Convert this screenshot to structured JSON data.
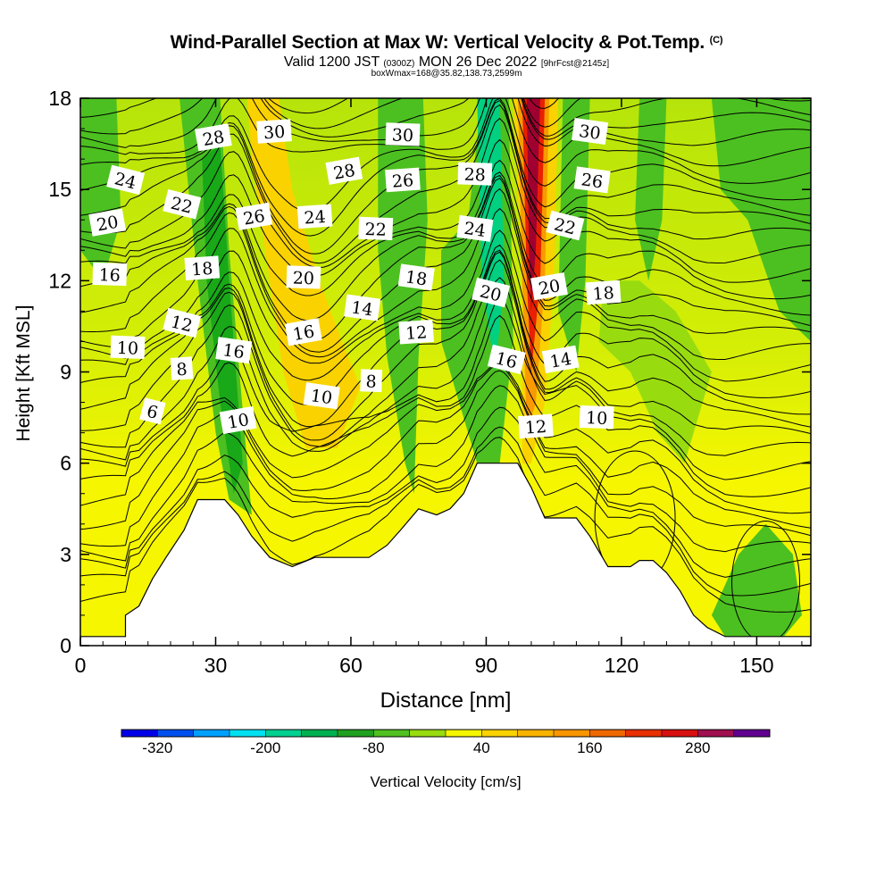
{
  "header": {
    "title_main": "Wind-Parallel Section at Max W: Vertical Velocity & Pot.Temp.",
    "title_mark": "(C)",
    "sub_valid": "Valid 1200 JST",
    "sub_zulu": "(0300Z)",
    "sub_date": "MON 26 Dec 2022",
    "sub_fcst": "[9hrFcst@2145z]",
    "box_info": "boxWmax=168@35.82,138.73,2599m"
  },
  "colors": {
    "blue": "#1414ff",
    "cyan": "#00e8e8",
    "teal": "#00d080",
    "green_dark": "#18a818",
    "green": "#4cc020",
    "green_light": "#98dc10",
    "yellow": "#f6f600",
    "yellow_gold": "#fad200",
    "orange": "#f89a00",
    "red": "#e82000",
    "maroon": "#a00030",
    "purple": "#600090",
    "terrain": "#ffffff",
    "contour": "#000000"
  },
  "chart_data": {
    "type": "heatmap",
    "xlabel": "Distance [nm]",
    "ylabel": "Height [Kft MSL]",
    "xlim": [
      0,
      162
    ],
    "ylim": [
      0,
      18
    ],
    "xticks": [
      0,
      30,
      60,
      90,
      120,
      150
    ],
    "yticks": [
      0,
      3,
      6,
      9,
      12,
      15,
      18
    ],
    "terrain_kft": [
      [
        0,
        0.3
      ],
      [
        10,
        0.3
      ],
      [
        10,
        1.0
      ],
      [
        13,
        1.3
      ],
      [
        16,
        2.2
      ],
      [
        19,
        2.9
      ],
      [
        23,
        3.8
      ],
      [
        26,
        4.8
      ],
      [
        32,
        4.8
      ],
      [
        35,
        4.3
      ],
      [
        38,
        3.6
      ],
      [
        42,
        2.9
      ],
      [
        47,
        2.6
      ],
      [
        52,
        2.9
      ],
      [
        64,
        2.9
      ],
      [
        68,
        3.3
      ],
      [
        71,
        3.8
      ],
      [
        75,
        4.5
      ],
      [
        79,
        4.3
      ],
      [
        82,
        4.5
      ],
      [
        85,
        5.0
      ],
      [
        88,
        6.0
      ],
      [
        93,
        6.0
      ],
      [
        97,
        6.0
      ],
      [
        100,
        5.2
      ],
      [
        103,
        4.2
      ],
      [
        110,
        4.2
      ],
      [
        113,
        3.6
      ],
      [
        117,
        2.6
      ],
      [
        122,
        2.6
      ],
      [
        124,
        2.8
      ],
      [
        127,
        2.8
      ],
      [
        130,
        2.4
      ],
      [
        133,
        1.8
      ],
      [
        136,
        1.0
      ],
      [
        139,
        0.6
      ],
      [
        143,
        0.3
      ],
      [
        162,
        0.3
      ]
    ],
    "vertical_velocity_areas": [
      {
        "band": "green",
        "polygon": [
          [
            0,
            18
          ],
          [
            8,
            18
          ],
          [
            9,
            14
          ],
          [
            5,
            12
          ],
          [
            0,
            13
          ]
        ]
      },
      {
        "band": "green",
        "polygon": [
          [
            22,
            18
          ],
          [
            31,
            18
          ],
          [
            33,
            13
          ],
          [
            37,
            6
          ],
          [
            38,
            4.3
          ],
          [
            33,
            4.8
          ],
          [
            30,
            7
          ],
          [
            26,
            12
          ]
        ]
      },
      {
        "band": "green_dark",
        "polygon": [
          [
            27,
            16
          ],
          [
            31,
            16.5
          ],
          [
            33,
            12
          ],
          [
            36,
            6
          ],
          [
            34,
            5
          ],
          [
            31,
            8
          ],
          [
            28,
            12
          ]
        ]
      },
      {
        "band": "yellow_gold",
        "polygon": [
          [
            37,
            18
          ],
          [
            44,
            18
          ],
          [
            47,
            15
          ],
          [
            53,
            12
          ],
          [
            58,
            10
          ],
          [
            62,
            8.5
          ],
          [
            57,
            6.5
          ],
          [
            50,
            6.5
          ],
          [
            45,
            9
          ],
          [
            41,
            13
          ],
          [
            38,
            16
          ]
        ]
      },
      {
        "band": "green",
        "polygon": [
          [
            66,
            18
          ],
          [
            76,
            18
          ],
          [
            77,
            14
          ],
          [
            75,
            9.5
          ],
          [
            74,
            5
          ],
          [
            72,
            6
          ],
          [
            68,
            9.5
          ],
          [
            66,
            13
          ]
        ]
      },
      {
        "band": "green",
        "polygon": [
          [
            80,
            13
          ],
          [
            86,
            14
          ],
          [
            89,
            18
          ],
          [
            95,
            18
          ],
          [
            96,
            10
          ],
          [
            93,
            6
          ],
          [
            88,
            6
          ],
          [
            84,
            8
          ],
          [
            80,
            10
          ]
        ]
      },
      {
        "band": "teal",
        "polygon": [
          [
            88,
            18
          ],
          [
            93,
            18
          ],
          [
            94,
            12
          ],
          [
            92,
            9
          ],
          [
            89,
            12
          ]
        ]
      },
      {
        "band": "yellow_gold",
        "polygon": [
          [
            96,
            18
          ],
          [
            106,
            18
          ],
          [
            105,
            12
          ],
          [
            103,
            8
          ],
          [
            100,
            6
          ],
          [
            98,
            6
          ],
          [
            98,
            12
          ]
        ]
      },
      {
        "band": "orange",
        "polygon": [
          [
            97,
            18
          ],
          [
            104,
            18
          ],
          [
            103,
            12
          ],
          [
            101,
            8
          ],
          [
            99,
            7
          ],
          [
            98,
            12
          ]
        ]
      },
      {
        "band": "red",
        "polygon": [
          [
            98,
            18
          ],
          [
            103,
            18
          ],
          [
            102,
            12
          ],
          [
            100,
            9
          ],
          [
            99,
            12
          ]
        ]
      },
      {
        "band": "maroon",
        "polygon": [
          [
            99,
            18
          ],
          [
            102,
            18
          ],
          [
            101,
            13
          ],
          [
            100,
            11
          ],
          [
            99.5,
            13
          ]
        ]
      },
      {
        "band": "green",
        "polygon": [
          [
            107,
            18
          ],
          [
            113,
            18
          ],
          [
            112,
            12
          ],
          [
            110,
            9
          ],
          [
            106,
            11
          ]
        ]
      },
      {
        "band": "green",
        "polygon": [
          [
            124,
            18
          ],
          [
            130,
            18
          ],
          [
            129,
            14
          ],
          [
            126,
            12
          ],
          [
            123,
            14
          ]
        ]
      },
      {
        "band": "green",
        "polygon": [
          [
            140,
            18
          ],
          [
            162,
            18
          ],
          [
            162,
            10
          ],
          [
            155,
            11
          ],
          [
            148,
            14
          ],
          [
            142,
            15
          ]
        ]
      },
      {
        "band": "green",
        "polygon": [
          [
            140,
            1
          ],
          [
            146,
            3
          ],
          [
            152,
            4
          ],
          [
            158,
            3
          ],
          [
            160,
            1
          ],
          [
            156,
            0.3
          ],
          [
            143,
            0.3
          ]
        ]
      },
      {
        "band": "green_light",
        "polygon": [
          [
            115,
            10
          ],
          [
            122,
            9
          ],
          [
            128,
            7
          ],
          [
            134,
            6
          ],
          [
            140,
            9
          ],
          [
            132,
            11
          ],
          [
            124,
            12
          ],
          [
            116,
            12
          ]
        ]
      }
    ],
    "theta_contour_labels": [
      {
        "x": 29.5,
        "y": 16.7,
        "text": "28"
      },
      {
        "x": 43,
        "y": 16.9,
        "text": "30"
      },
      {
        "x": 71.5,
        "y": 16.8,
        "text": "30"
      },
      {
        "x": 113,
        "y": 16.9,
        "text": "30"
      },
      {
        "x": 10,
        "y": 15.3,
        "text": "24"
      },
      {
        "x": 58.5,
        "y": 15.6,
        "text": "28"
      },
      {
        "x": 71.5,
        "y": 15.3,
        "text": "26"
      },
      {
        "x": 87.5,
        "y": 15.5,
        "text": "28"
      },
      {
        "x": 113.5,
        "y": 15.3,
        "text": "26"
      },
      {
        "x": 22.5,
        "y": 14.5,
        "text": "22"
      },
      {
        "x": 38.5,
        "y": 14.1,
        "text": "26"
      },
      {
        "x": 52,
        "y": 14.1,
        "text": "24"
      },
      {
        "x": 65.5,
        "y": 13.7,
        "text": "22"
      },
      {
        "x": 87.5,
        "y": 13.7,
        "text": "24"
      },
      {
        "x": 107.5,
        "y": 13.8,
        "text": "22"
      },
      {
        "x": 6,
        "y": 13.9,
        "text": "20"
      },
      {
        "x": 27,
        "y": 12.4,
        "text": "18"
      },
      {
        "x": 49.5,
        "y": 12.1,
        "text": "20"
      },
      {
        "x": 74.5,
        "y": 12.1,
        "text": "18"
      },
      {
        "x": 91,
        "y": 11.6,
        "text": "20"
      },
      {
        "x": 104,
        "y": 11.8,
        "text": "20"
      },
      {
        "x": 116,
        "y": 11.6,
        "text": "18"
      },
      {
        "x": 6.5,
        "y": 12.2,
        "text": "16"
      },
      {
        "x": 62.5,
        "y": 11.1,
        "text": "14"
      },
      {
        "x": 22.5,
        "y": 10.6,
        "text": "12"
      },
      {
        "x": 49.5,
        "y": 10.3,
        "text": "16"
      },
      {
        "x": 74.5,
        "y": 10.3,
        "text": "12"
      },
      {
        "x": 10.5,
        "y": 9.8,
        "text": "10"
      },
      {
        "x": 34,
        "y": 9.7,
        "text": "16"
      },
      {
        "x": 94.5,
        "y": 9.4,
        "text": "16"
      },
      {
        "x": 106.5,
        "y": 9.4,
        "text": "14"
      },
      {
        "x": 22.5,
        "y": 9.1,
        "text": "8"
      },
      {
        "x": 64.5,
        "y": 8.7,
        "text": "8"
      },
      {
        "x": 53.5,
        "y": 8.2,
        "text": "10"
      },
      {
        "x": 16,
        "y": 7.7,
        "text": "6"
      },
      {
        "x": 35,
        "y": 7.4,
        "text": "10"
      },
      {
        "x": 101,
        "y": 7.2,
        "text": "12"
      },
      {
        "x": 114.5,
        "y": 7.5,
        "text": "10"
      }
    ],
    "colorbar": {
      "label": "Vertical Velocity [cm/s]",
      "tick_labels": [
        "-320",
        "-200",
        "-80",
        "40",
        "160",
        "280"
      ],
      "colors": [
        "#0000e8",
        "#0050f0",
        "#00a0ff",
        "#00e0f0",
        "#00d090",
        "#00b050",
        "#20a020",
        "#50c020",
        "#98dc10",
        "#f6f600",
        "#fad200",
        "#fab400",
        "#f89600",
        "#f06800",
        "#e83000",
        "#d81010",
        "#a01050",
        "#600090"
      ]
    }
  }
}
